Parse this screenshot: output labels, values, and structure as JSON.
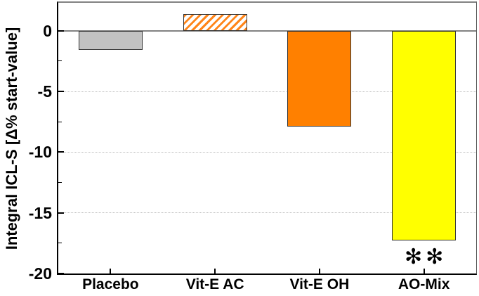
{
  "chart_data": {
    "type": "bar",
    "title": "",
    "xlabel": "",
    "ylabel": "Integral ICL-S [Δ% start-value]",
    "categories": [
      "Placebo",
      "Vit-E AC",
      "Vit-E OH",
      "AO-Mix"
    ],
    "values": [
      -1.6,
      1.4,
      -7.9,
      -17.3
    ],
    "bar_styles": [
      {
        "fill": "#c2c2c2",
        "pattern": "solid"
      },
      {
        "fill": "#ffffff",
        "pattern": "diagonal-hatch",
        "hatch_color": "#ff8519"
      },
      {
        "fill": "#ff8000",
        "pattern": "solid"
      },
      {
        "fill": "#ffff00",
        "pattern": "solid"
      }
    ],
    "bar_border_color": "#333333",
    "ylim": [
      -20,
      2.3
    ],
    "yticks": [
      0,
      -5,
      -10,
      -15,
      -20
    ],
    "ytick_labels": [
      "0",
      "-5",
      "-10",
      "-15",
      "-20"
    ],
    "minor_yticks": [
      -2.5,
      -7.5,
      -12.5,
      -17.5
    ],
    "gridlines": {
      "y_values": [
        -5,
        -10,
        -15
      ],
      "style": "dotted",
      "color": "#bdbdbd"
    },
    "zero_line": {
      "value": 0,
      "color": "#828282"
    },
    "axis_color": "#000000",
    "frame_top_color": "#828282",
    "legend": null,
    "annotations": [
      {
        "text": "✻✻",
        "category": "AO-Mix"
      }
    ]
  }
}
